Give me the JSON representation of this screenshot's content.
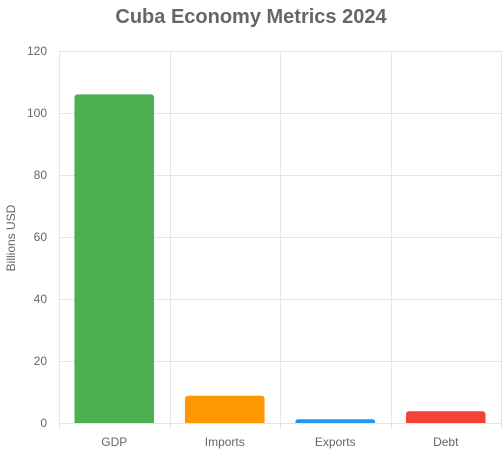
{
  "chart_data": {
    "type": "bar",
    "title": "Cuba Economy Metrics 2024",
    "xlabel": "",
    "ylabel": "Billions USD",
    "categories": [
      "GDP",
      "Imports",
      "Exports",
      "Debt"
    ],
    "values": [
      106,
      8.8,
      1.2,
      3.8
    ],
    "colors": [
      "#4caf50",
      "#ff9800",
      "#2196f3",
      "#f44336"
    ],
    "ylim": [
      0,
      120
    ],
    "yticks": [
      0,
      20,
      40,
      60,
      80,
      100,
      120
    ],
    "grid": true,
    "legend": "none"
  }
}
